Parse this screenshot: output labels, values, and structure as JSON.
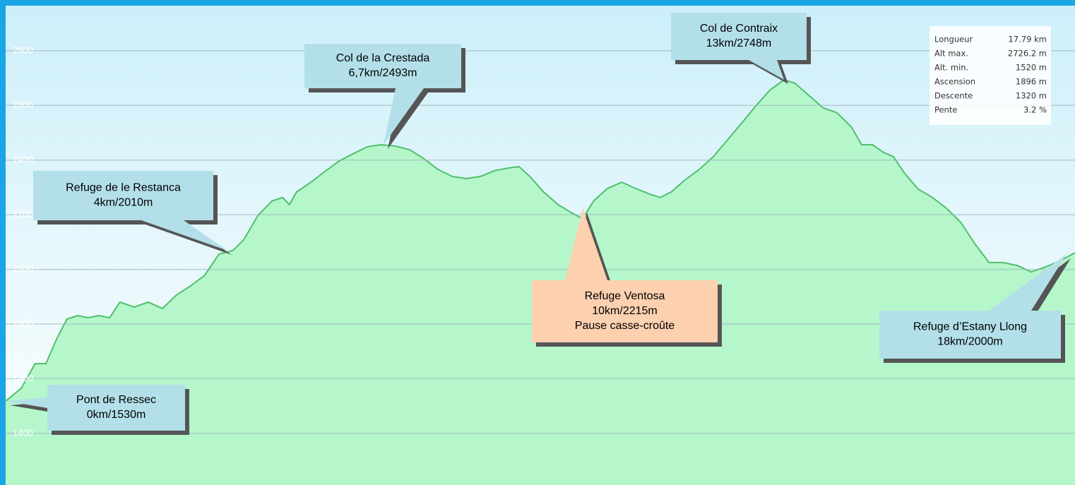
{
  "chart_data": {
    "type": "area",
    "x": [
      0,
      0.26,
      0.49,
      0.67,
      0.85,
      1.02,
      1.2,
      1.37,
      1.55,
      1.73,
      1.9,
      2.14,
      2.37,
      2.61,
      2.84,
      3.08,
      3.31,
      3.55,
      3.78,
      3.96,
      4.2,
      4.43,
      4.61,
      4.72,
      4.84,
      5.08,
      5.31,
      5.55,
      5.78,
      6.02,
      6.25,
      6.49,
      6.72,
      6.96,
      7.19,
      7.43,
      7.66,
      7.9,
      8.13,
      8.37,
      8.54,
      8.72,
      8.95,
      9.19,
      9.42,
      9.6,
      9.78,
      10.01,
      10.25,
      10.48,
      10.72,
      10.89,
      11.07,
      11.3,
      11.54,
      11.77,
      12.01,
      12.24,
      12.48,
      12.71,
      12.95,
      13.13,
      13.36,
      13.6,
      13.83,
      14.07,
      14.24,
      14.42,
      14.59,
      14.77,
      14.95,
      15.18,
      15.42,
      15.65,
      15.89,
      16.12,
      16.36,
      16.59,
      16.83,
      17.06,
      17.3,
      17.53,
      17.79
    ],
    "series": [
      {
        "color": "#4fbf6c",
        "fill": "#b5f7cb",
        "values": [
          1518,
          1565,
          1655,
          1655,
          1746,
          1818,
          1831,
          1823,
          1831,
          1823,
          1880,
          1862,
          1880,
          1857,
          1906,
          1940,
          1978,
          2056,
          2069,
          2108,
          2198,
          2250,
          2263,
          2237,
          2283,
          2319,
          2358,
          2397,
          2423,
          2449,
          2456,
          2451,
          2438,
          2405,
          2366,
          2340,
          2332,
          2340,
          2361,
          2371,
          2376,
          2340,
          2283,
          2237,
          2206,
          2185,
          2250,
          2296,
          2319,
          2296,
          2275,
          2263,
          2283,
          2327,
          2366,
          2412,
          2474,
          2534,
          2598,
          2655,
          2694,
          2681,
          2637,
          2591,
          2573,
          2521,
          2456,
          2456,
          2430,
          2412,
          2353,
          2294,
          2263,
          2224,
          2172,
          2095,
          2025,
          2025,
          2014,
          1991,
          2009,
          2030,
          2061
        ]
      }
    ],
    "xlim": [
      0,
      17.79
    ],
    "ylim": [
      1211,
      2965
    ],
    "yticks": [
      1400,
      1600,
      1800,
      2000,
      2200,
      2400,
      2600,
      2800
    ],
    "grid": true,
    "annotations": [
      {
        "lines": [
          "Pont de Ressec",
          "0km/1530m"
        ],
        "color": "#b3dfe9"
      },
      {
        "lines": [
          "Refuge de le Restanca",
          "4km/2010m"
        ],
        "color": "#b3dfe9"
      },
      {
        "lines": [
          "Col de la Crestada",
          "6,7km/2493m"
        ],
        "color": "#b3dfe9"
      },
      {
        "lines": [
          "Col de Contraix",
          "13km/2748m"
        ],
        "color": "#b3dfe9"
      },
      {
        "lines": [
          "Refuge Ventosa",
          "10km/2215m",
          "Pause casse-croûte"
        ],
        "color": "#fdd0b0"
      },
      {
        "lines": [
          "Refuge d’Estany Llong",
          "18km/2000m"
        ],
        "color": "#b3dfe9"
      }
    ],
    "stats": [
      [
        "Longueur",
        "17.79 km"
      ],
      [
        "Alt max.",
        "2726.2 m"
      ],
      [
        "Alt. min.",
        "1520 m"
      ],
      [
        "Ascension",
        "1896 m"
      ],
      [
        "Descente",
        "1320 m"
      ],
      [
        "Pente",
        "3.2 %"
      ]
    ]
  }
}
